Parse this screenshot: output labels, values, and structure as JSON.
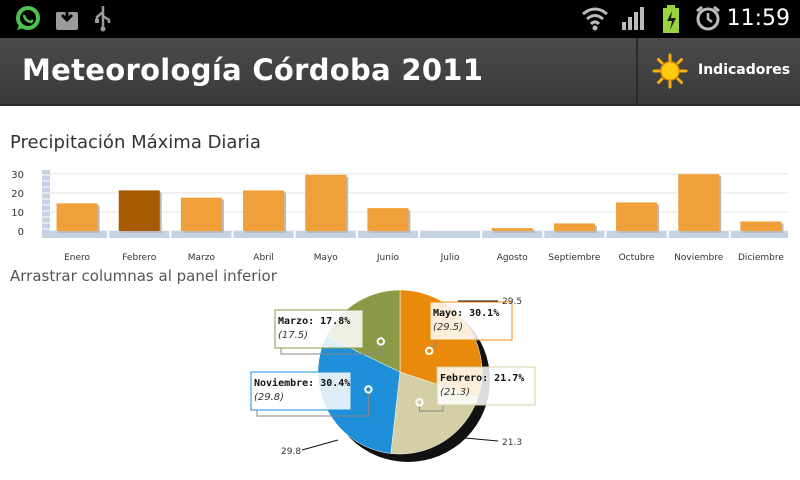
{
  "status_bar": {
    "icons": [
      "whatsapp-icon",
      "download-icon",
      "usb-icon",
      "wifi-icon",
      "signal-icon",
      "battery-charging-icon",
      "alarm-icon"
    ],
    "time": "11:59"
  },
  "app_bar": {
    "title": "Meteorología Córdoba 2011",
    "indicators_label": "Indicadores",
    "indicators_icon": "sun-icon"
  },
  "bar_section": {
    "title": "Precipitación Máxima Diaria",
    "drag_hint": "Arrastrar columnas al panel inferior"
  },
  "colors": {
    "bar": "#f0a03a",
    "bar_selected": "#a85a00",
    "slices": {
      "Mayo": "#ea8a0c",
      "Febrero": "#d4cfa4",
      "Noviembre": "#1e8fd8",
      "Marzo": "#8a9a46"
    }
  },
  "chart_data": [
    {
      "type": "bar",
      "title": "Precipitación Máxima Diaria",
      "categories": [
        "Enero",
        "Febrero",
        "Marzo",
        "Abril",
        "Mayo",
        "Junio",
        "Julio",
        "Agosto",
        "Septiembre",
        "Octubre",
        "Noviembre",
        "Diciembre"
      ],
      "values": [
        14.5,
        21.3,
        17.5,
        21.3,
        29.5,
        12.0,
        0,
        1.5,
        4.0,
        15.0,
        29.8,
        5.0
      ],
      "selected": "Febrero",
      "yticks": [
        0,
        10,
        20,
        30
      ],
      "ylim": [
        0,
        32
      ],
      "grid": true
    },
    {
      "type": "pie",
      "slices": [
        {
          "label": "Mayo",
          "percent": "30.1%",
          "value": "(29.5)",
          "outer": "29.5"
        },
        {
          "label": "Febrero",
          "percent": "21.7%",
          "value": "(21.3)",
          "outer": "21.3"
        },
        {
          "label": "Noviembre",
          "percent": "30.4%",
          "value": "(29.8)",
          "outer": "29.8"
        },
        {
          "label": "Marzo",
          "percent": "17.8%",
          "value": "(17.5)",
          "outer": ""
        }
      ],
      "values": [
        29.5,
        21.3,
        29.8,
        17.5
      ]
    }
  ]
}
